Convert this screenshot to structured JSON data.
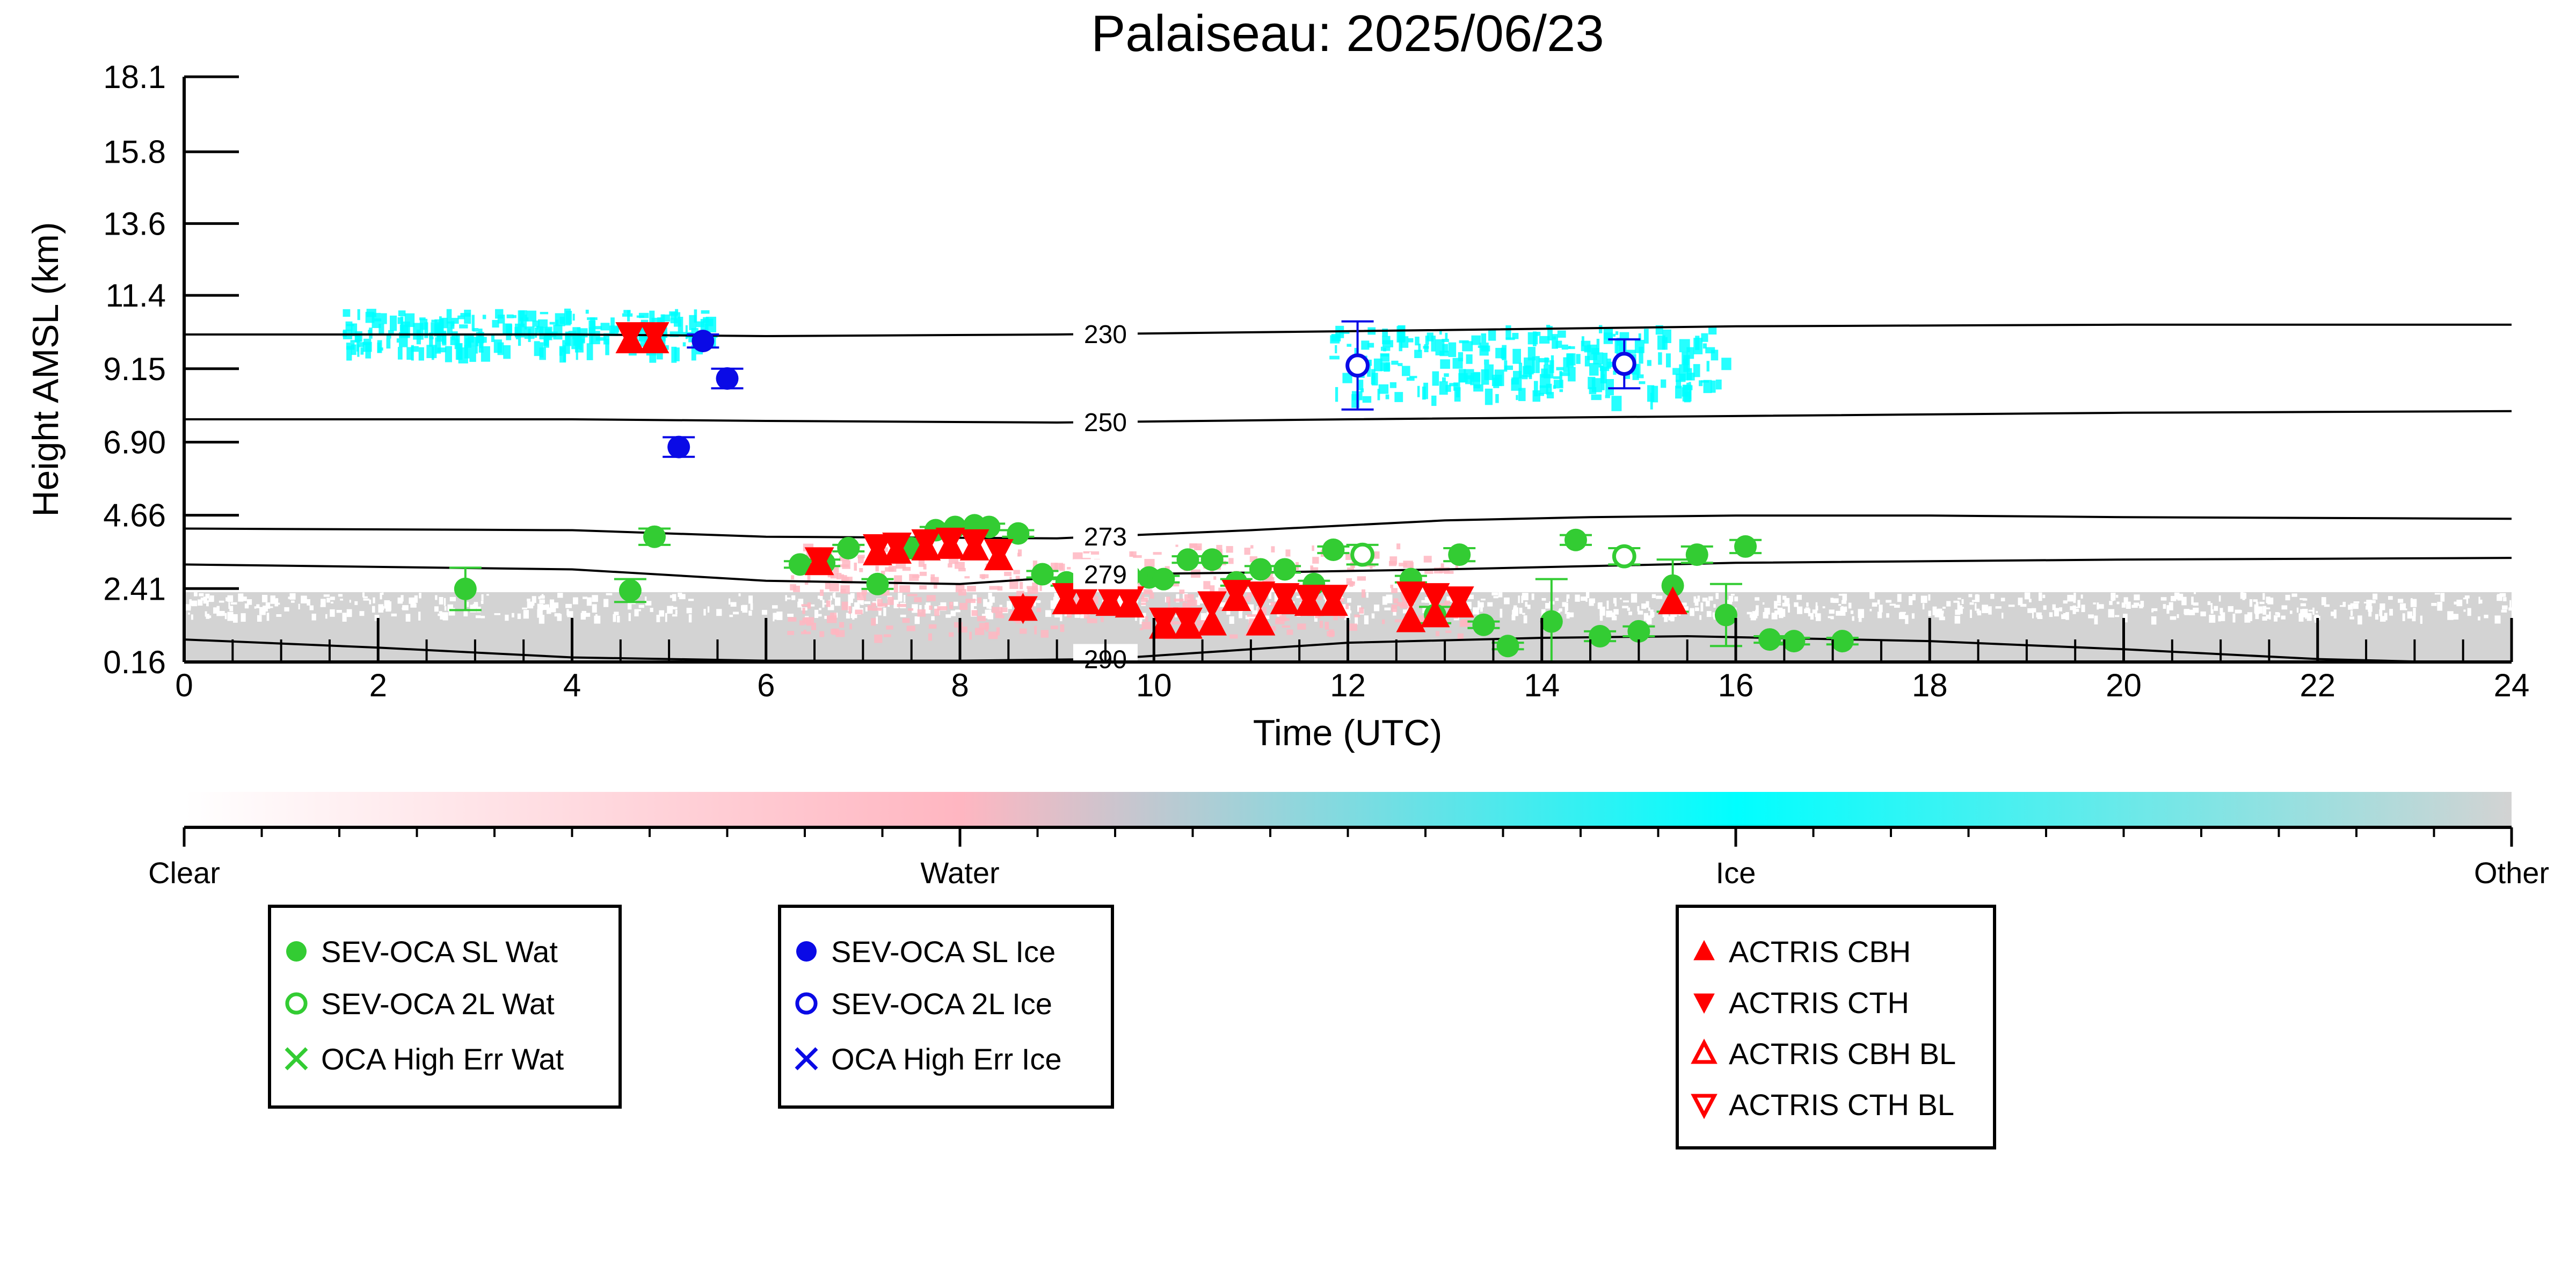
{
  "chart_data": {
    "type": "scatter",
    "title": "Palaiseau: 2025/06/23",
    "xlabel": "Time (UTC)",
    "ylabel": "Height AMSL (km)",
    "xlim": [
      0,
      24
    ],
    "ylim": [
      0.16,
      18.1
    ],
    "x_ticks": [
      "0",
      "2",
      "4",
      "6",
      "8",
      "10",
      "12",
      "14",
      "16",
      "18",
      "20",
      "22",
      "24"
    ],
    "y_ticks": [
      "0.16",
      "2.41",
      "4.66",
      "6.90",
      "9.15",
      "11.4",
      "13.6",
      "15.8",
      "18.1"
    ],
    "colorbar": {
      "labels": [
        "Clear",
        "Water",
        "Ice",
        "Other"
      ],
      "colors": [
        "#ffffff",
        "#ffb6c1",
        "#00ffff",
        "#d3d3d3"
      ]
    },
    "isotherms": [
      {
        "label": "230",
        "x": [
          0,
          4,
          6,
          9,
          12,
          16,
          20,
          24
        ],
        "y": [
          10.2,
          10.2,
          10.15,
          10.2,
          10.3,
          10.45,
          10.5,
          10.5
        ]
      },
      {
        "label": "250",
        "x": [
          0,
          4,
          6,
          9,
          12,
          16,
          20,
          24
        ],
        "y": [
          7.6,
          7.6,
          7.55,
          7.5,
          7.6,
          7.7,
          7.8,
          7.85
        ]
      },
      {
        "label": "273",
        "x": [
          0,
          4,
          6,
          9,
          11,
          13,
          14.5,
          16,
          18,
          20,
          24
        ],
        "y": [
          4.25,
          4.2,
          4.0,
          3.95,
          4.2,
          4.5,
          4.6,
          4.65,
          4.65,
          4.6,
          4.55
        ]
      },
      {
        "label": "279",
        "x": [
          0,
          4,
          6,
          8,
          9.5,
          11,
          13,
          14.5,
          16,
          20,
          24
        ],
        "y": [
          3.15,
          3.0,
          2.65,
          2.55,
          2.85,
          2.9,
          3.0,
          3.1,
          3.2,
          3.3,
          3.35
        ]
      },
      {
        "label": "290",
        "x": [
          0,
          2,
          4,
          6,
          8,
          9.5,
          10,
          11,
          12,
          14,
          15.5,
          18,
          20,
          22,
          24
        ],
        "y": [
          0.85,
          0.6,
          0.3,
          0.2,
          0.2,
          0.25,
          0.35,
          0.55,
          0.75,
          0.9,
          0.95,
          0.8,
          0.55,
          0.25,
          0.1
        ]
      }
    ],
    "series": [
      {
        "name": "SEV-OCA SL Wat",
        "color": "#33cc33",
        "marker": "filled-circle",
        "x": [
          2.9,
          4.6,
          4.85,
          6.35,
          6.6,
          6.85,
          7.15,
          7.5,
          7.75,
          7.95,
          8.15,
          8.3,
          8.6,
          8.85,
          9.1,
          9.3,
          9.55,
          9.75,
          9.95,
          10.1,
          10.35,
          10.6,
          10.85,
          11.1,
          11.35,
          11.65,
          11.85,
          12.65,
          12.9,
          13.15,
          13.4,
          13.65,
          14.1,
          14.35,
          14.6,
          15.0,
          15.35,
          15.6,
          15.9,
          16.1,
          16.35,
          16.6,
          17.1
        ],
        "y": [
          2.4,
          2.35,
          4.0,
          3.15,
          3.2,
          3.65,
          2.55,
          3.65,
          4.2,
          4.3,
          4.35,
          4.3,
          4.1,
          2.85,
          2.6,
          2.75,
          2.8,
          2.8,
          2.75,
          2.7,
          3.3,
          3.3,
          2.6,
          3.0,
          3.0,
          2.55,
          3.6,
          2.7,
          1.6,
          3.45,
          1.3,
          0.65,
          1.4,
          3.9,
          0.95,
          1.1,
          2.5,
          3.45,
          1.6,
          3.7,
          0.85,
          0.8,
          0.8
        ],
        "yerr": [
          0.65,
          0.35,
          0.25,
          0.1,
          0.1,
          0.1,
          0.15,
          0.1,
          0.1,
          0.1,
          0.1,
          0.1,
          0.1,
          0.1,
          0.1,
          0.1,
          0.1,
          0.1,
          0.1,
          0.1,
          0.1,
          0.1,
          0.1,
          0.1,
          0.1,
          0.1,
          0.1,
          0.1,
          0.25,
          0.2,
          0.1,
          0.1,
          1.3,
          0.15,
          0.15,
          0.15,
          0.8,
          0.25,
          0.95,
          0.2,
          0.1,
          0.1,
          0.1
        ]
      },
      {
        "name": "SEV-OCA 2L Wat",
        "color": "#33cc33",
        "marker": "open-circle",
        "x": [
          12.15,
          14.85
        ],
        "y": [
          3.45,
          3.4
        ],
        "yerr": [
          0.3,
          0.25
        ]
      },
      {
        "name": "OCA High Err Wat",
        "color": "#33cc33",
        "marker": "x",
        "x": [],
        "y": []
      },
      {
        "name": "SEV-OCA SL Ice",
        "color": "#0a0ae6",
        "marker": "filled-circle",
        "x": [
          5.1,
          5.35,
          5.6
        ],
        "y": [
          6.75,
          10.0,
          8.85
        ],
        "yerr": [
          0.3,
          0.2,
          0.3
        ]
      },
      {
        "name": "SEV-OCA 2L Ice",
        "color": "#0a0ae6",
        "marker": "open-circle",
        "x": [
          12.1,
          14.85
        ],
        "y": [
          9.25,
          9.3
        ],
        "yerr": [
          1.35,
          0.75
        ]
      },
      {
        "name": "OCA High Err Ice",
        "color": "#0a0ae6",
        "marker": "x",
        "x": [],
        "y": []
      },
      {
        "name": "ACTRIS CBH",
        "color": "#ff0000",
        "marker": "triangle-up",
        "x": [
          4.6,
          4.85,
          6.55,
          7.15,
          7.35,
          7.65,
          7.9,
          8.15,
          8.4,
          8.65,
          9.1,
          9.3,
          9.55,
          9.75,
          10.1,
          10.35,
          10.6,
          10.85,
          11.1,
          11.35,
          11.6,
          11.85,
          12.65,
          12.9,
          13.15,
          15.35
        ],
        "y": [
          10.0,
          10.0,
          3.2,
          3.5,
          3.55,
          3.65,
          3.7,
          3.65,
          3.35,
          1.8,
          2.0,
          2.0,
          1.95,
          1.9,
          1.25,
          1.25,
          1.35,
          2.1,
          1.35,
          2.0,
          1.95,
          1.95,
          1.45,
          1.6,
          1.9,
          2.0
        ]
      },
      {
        "name": "ACTRIS CTH",
        "color": "#ff0000",
        "marker": "triangle-down",
        "x": [
          4.6,
          4.85,
          6.55,
          7.15,
          7.35,
          7.65,
          7.9,
          8.15,
          8.4,
          8.65,
          9.1,
          9.3,
          9.55,
          9.75,
          10.1,
          10.35,
          10.6,
          10.85,
          11.1,
          11.35,
          11.6,
          11.85,
          12.65,
          12.9,
          13.15
        ],
        "y": [
          10.2,
          10.2,
          3.3,
          3.7,
          3.75,
          3.85,
          3.9,
          3.85,
          3.55,
          1.8,
          2.2,
          2.2,
          2.15,
          2.1,
          1.45,
          1.45,
          1.95,
          2.3,
          2.25,
          2.2,
          2.15,
          2.15,
          2.25,
          2.2,
          2.1
        ]
      },
      {
        "name": "ACTRIS CBH BL",
        "color": "#ff0000",
        "marker": "open-triangle-up",
        "x": [],
        "y": []
      },
      {
        "name": "ACTRIS CTH BL",
        "color": "#ff0000",
        "marker": "open-triangle-down",
        "x": [],
        "y": []
      }
    ],
    "classification_regions": [
      {
        "class": "Other",
        "color": "#d3d3d3",
        "x": [
          0,
          24
        ],
        "y": [
          0.16,
          2.3
        ]
      },
      {
        "class": "Ice",
        "color": "#00ffff",
        "x": [
          1.6,
          5.4
        ],
        "y": [
          9.8,
          11.0
        ]
      },
      {
        "class": "Ice",
        "color": "#00ffff",
        "x": [
          11.8,
          15.9
        ],
        "y": [
          8.3,
          10.5
        ]
      },
      {
        "class": "Water",
        "color": "#ffb6c1",
        "x": [
          6.2,
          13.2
        ],
        "y": [
          1.0,
          3.8
        ]
      }
    ],
    "legends": [
      {
        "items": [
          "SEV-OCA SL Wat",
          "SEV-OCA 2L Wat",
          "OCA High Err Wat"
        ]
      },
      {
        "items": [
          "SEV-OCA SL Ice",
          "SEV-OCA 2L Ice",
          "OCA High Err Ice"
        ]
      },
      {
        "items": [
          "ACTRIS CBH",
          "ACTRIS CTH",
          "ACTRIS CBH BL",
          "ACTRIS CTH BL"
        ]
      }
    ]
  }
}
